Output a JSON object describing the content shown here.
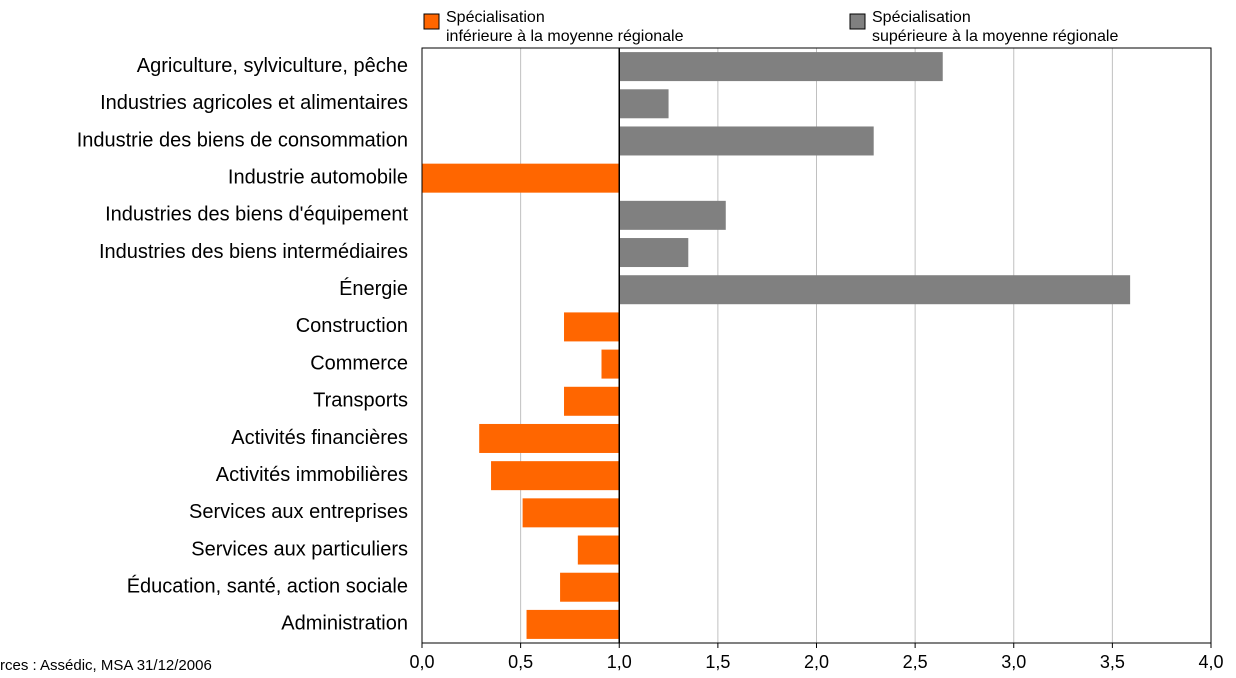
{
  "chart_data": {
    "type": "bar",
    "orientation": "horizontal",
    "base": 1,
    "categories": [
      "Agriculture, sylviculture, pêche",
      "Industries agricoles et alimentaires",
      "Industrie des biens de consommation",
      "Industrie automobile",
      "Industries des biens d'équipement",
      "Industries des biens intermédiaires",
      "Énergie",
      "Construction",
      "Commerce",
      "Transports",
      "Activités financières",
      "Activités immobilières",
      "Services aux entreprises",
      "Services aux particuliers",
      "Éducation, santé, action sociale",
      "Administration"
    ],
    "series": [
      {
        "name": "Spécialisation\ninférieure à la moyenne régionale",
        "color": "#ff6600",
        "values": [
          null,
          null,
          null,
          0.0,
          null,
          null,
          null,
          0.72,
          0.91,
          0.72,
          0.29,
          0.35,
          0.51,
          0.79,
          0.7,
          0.53
        ]
      },
      {
        "name": "Spécialisation\nsupérieure à la moyenne régionale",
        "color": "#808080",
        "values": [
          2.64,
          1.25,
          2.29,
          null,
          1.54,
          1.35,
          3.59,
          null,
          null,
          null,
          null,
          null,
          null,
          null,
          null,
          null
        ]
      }
    ],
    "xlim": [
      0,
      4
    ],
    "xticks": [
      {
        "value": 0,
        "label": "0,0"
      },
      {
        "value": 0.5,
        "label": "0,5"
      },
      {
        "value": 1,
        "label": "1,0"
      },
      {
        "value": 1.5,
        "label": "1,5"
      },
      {
        "value": 2,
        "label": "2,0"
      },
      {
        "value": 2.5,
        "label": "2,5"
      },
      {
        "value": 3,
        "label": "3,0"
      },
      {
        "value": 3.5,
        "label": "3,5"
      },
      {
        "value": 4,
        "label": "4,0"
      }
    ],
    "grid": true,
    "source": "rces : Assédic, MSA 31/12/2006"
  }
}
